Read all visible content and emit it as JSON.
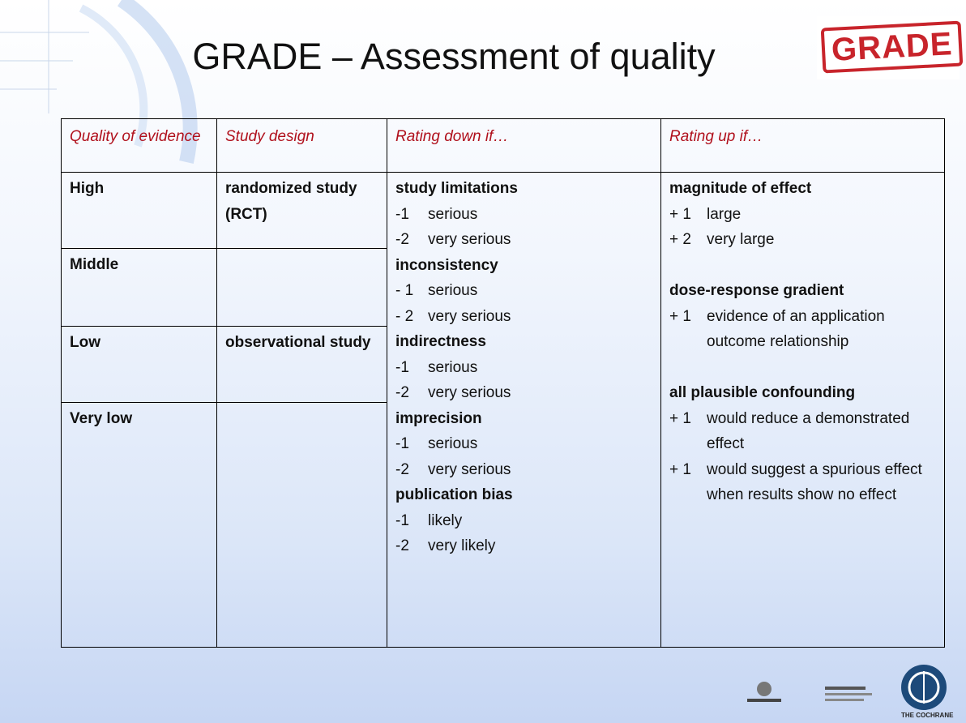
{
  "header": {
    "title": "GRADE – Assessment of quality",
    "logo": "GRADE"
  },
  "table": {
    "columns": [
      "Quality of evidence",
      "Study design",
      "Rating down if…",
      "Rating up if…"
    ],
    "levels": [
      {
        "quality": "High",
        "design": "randomized study (RCT)"
      },
      {
        "quality": "Middle",
        "design": ""
      },
      {
        "quality": "Low",
        "design": "observational study"
      },
      {
        "quality": "Very low",
        "design": ""
      }
    ],
    "rating_down": [
      {
        "heading": "study limitations",
        "items": [
          {
            "score": "-1",
            "text": "serious"
          },
          {
            "score": "-2",
            "text": "very serious"
          }
        ]
      },
      {
        "heading": "inconsistency",
        "items": [
          {
            "score": "- 1",
            "text": "serious"
          },
          {
            "score": "- 2",
            "text": "very serious"
          }
        ]
      },
      {
        "heading": "indirectness",
        "items": [
          {
            "score": "-1",
            "text": "serious"
          },
          {
            "score": "-2",
            "text": "very serious"
          }
        ]
      },
      {
        "heading": "imprecision",
        "items": [
          {
            "score": "-1",
            "text": "serious"
          },
          {
            "score": "-2",
            "text": "very serious"
          }
        ]
      },
      {
        "heading": "publication bias",
        "items": [
          {
            "score": "-1",
            "text": "likely"
          },
          {
            "score": "-2",
            "text": "very likely"
          }
        ]
      }
    ],
    "rating_up": [
      {
        "heading": "magnitude of effect",
        "items": [
          {
            "score": "+ 1",
            "text": "large"
          },
          {
            "score": "+ 2",
            "text": "very large"
          }
        ]
      },
      {
        "heading": "dose-response gradient",
        "items": [
          {
            "score": "+ 1",
            "text": "evidence of an application outcome relationship"
          }
        ]
      },
      {
        "heading": "all plausible confounding",
        "items": [
          {
            "score": "+ 1",
            "text": "would reduce a demonstrated effect"
          },
          {
            "score": "+ 1",
            "text": "would suggest a spurious effect when results show no effect"
          }
        ]
      }
    ]
  },
  "footer": {
    "logo_text": "THE COCHRANE"
  }
}
